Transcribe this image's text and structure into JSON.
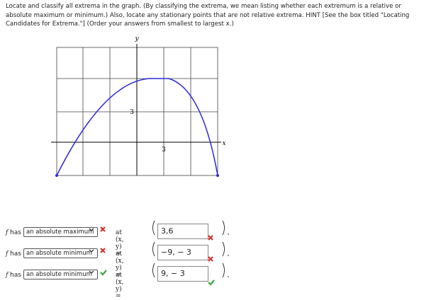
{
  "instructions": "Locate and classify all extrema in the graph. (By classifying the extrema, we mean listing whether each extremum is a relative or absolute maximum or minimum.) Also, locate any stationary points that are not relative extrema. HINT [See the box titled \"Locating Candidates for Extrema.\"] (Order your answers from smallest to largest x.)",
  "graph": {
    "y_label": "y",
    "x_label": "x",
    "y_tick": "3",
    "x_tick": "3"
  },
  "rows": [
    {
      "function": "f",
      "prefix": "has",
      "selection": "an absolute maximum",
      "point_label": "at (x, y) =",
      "answer": "3,6"
    },
    {
      "function": "f",
      "prefix": "has",
      "selection": "an absolute minimum",
      "point_label": "at (x, y) =",
      "answer": "−9, − 3"
    },
    {
      "function": "f",
      "prefix": "has",
      "selection": "an absolute minimum",
      "point_label": "at (x, y) =",
      "answer": "9, − 3"
    }
  ]
}
